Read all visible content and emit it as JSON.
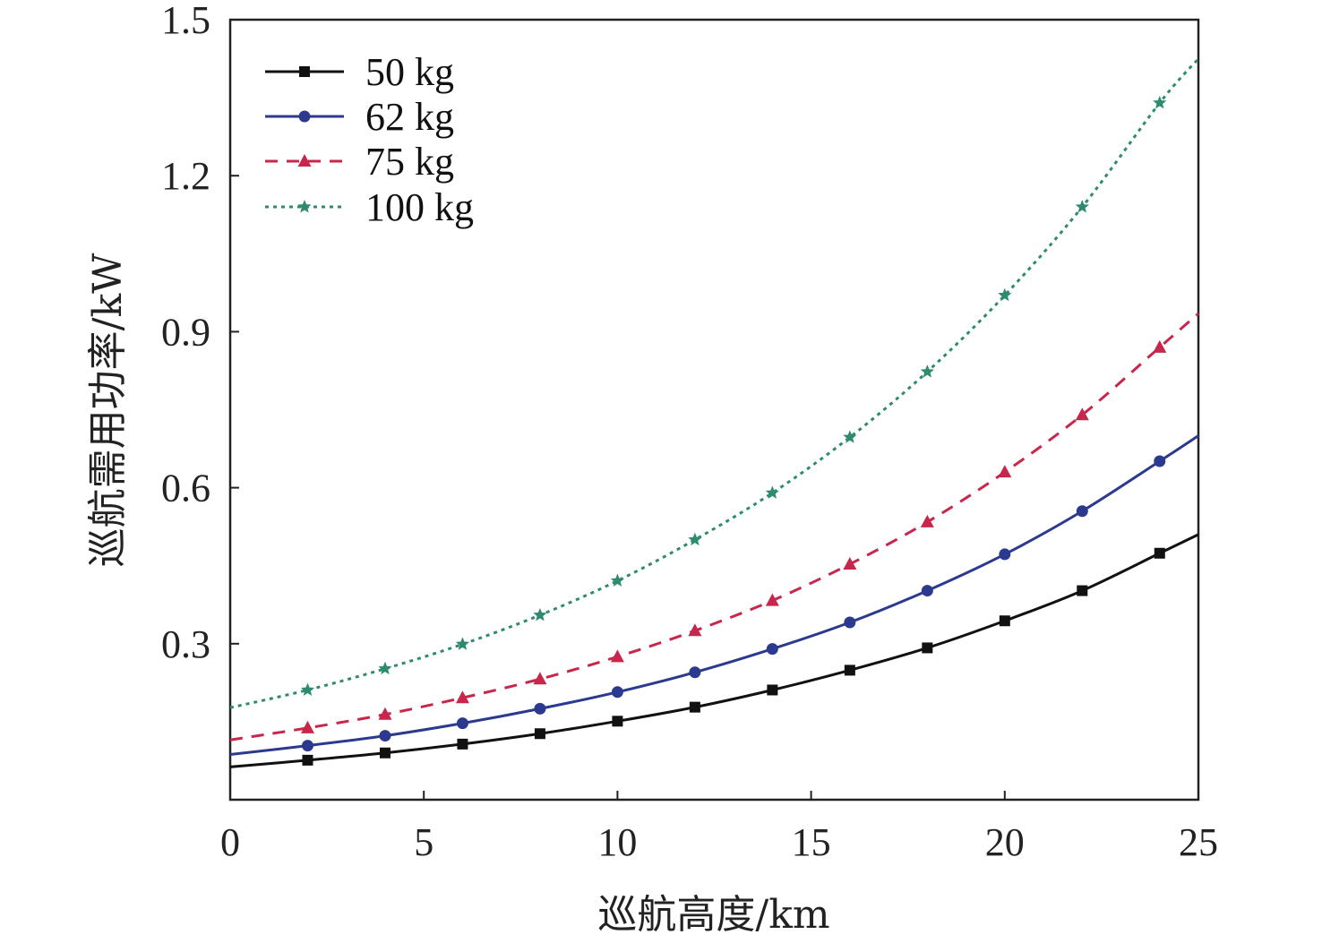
{
  "chart_data": {
    "type": "line",
    "xlabel": "巡航高度/km",
    "ylabel": "巡航需用功率/kW",
    "xlim": [
      0,
      25
    ],
    "ylim": [
      0,
      1.5
    ],
    "x_ticks": [
      "0",
      "5",
      "10",
      "15",
      "20",
      "25"
    ],
    "y_ticks": [
      "0.3",
      "0.6",
      "0.9",
      "1.2",
      "1.5"
    ],
    "grid": false,
    "legend_position": "top-left",
    "x": [
      0,
      2,
      4,
      6,
      8,
      10,
      12,
      14,
      16,
      18,
      20,
      22,
      24,
      25
    ],
    "series": [
      {
        "name": "50 kg",
        "color": "#111111",
        "marker": "square",
        "dash": "",
        "values": [
          0.063,
          0.076,
          0.09,
          0.107,
          0.127,
          0.151,
          0.178,
          0.211,
          0.249,
          0.292,
          0.344,
          0.402,
          0.474,
          0.51
        ]
      },
      {
        "name": "62 kg",
        "color": "#2b3a8e",
        "marker": "circle",
        "dash": "",
        "values": [
          0.087,
          0.104,
          0.123,
          0.147,
          0.175,
          0.207,
          0.245,
          0.29,
          0.341,
          0.402,
          0.472,
          0.555,
          0.651,
          0.7
        ]
      },
      {
        "name": "75 kg",
        "color": "#c8264a",
        "marker": "triangle",
        "dash": "14,10",
        "values": [
          0.115,
          0.138,
          0.164,
          0.196,
          0.232,
          0.275,
          0.325,
          0.383,
          0.453,
          0.534,
          0.63,
          0.74,
          0.87,
          0.935
        ]
      },
      {
        "name": "100 kg",
        "color": "#2e8b70",
        "marker": "star",
        "dash": "4,5",
        "values": [
          0.177,
          0.211,
          0.252,
          0.299,
          0.355,
          0.421,
          0.5,
          0.59,
          0.697,
          0.823,
          0.97,
          1.14,
          1.34,
          1.425
        ]
      }
    ]
  }
}
